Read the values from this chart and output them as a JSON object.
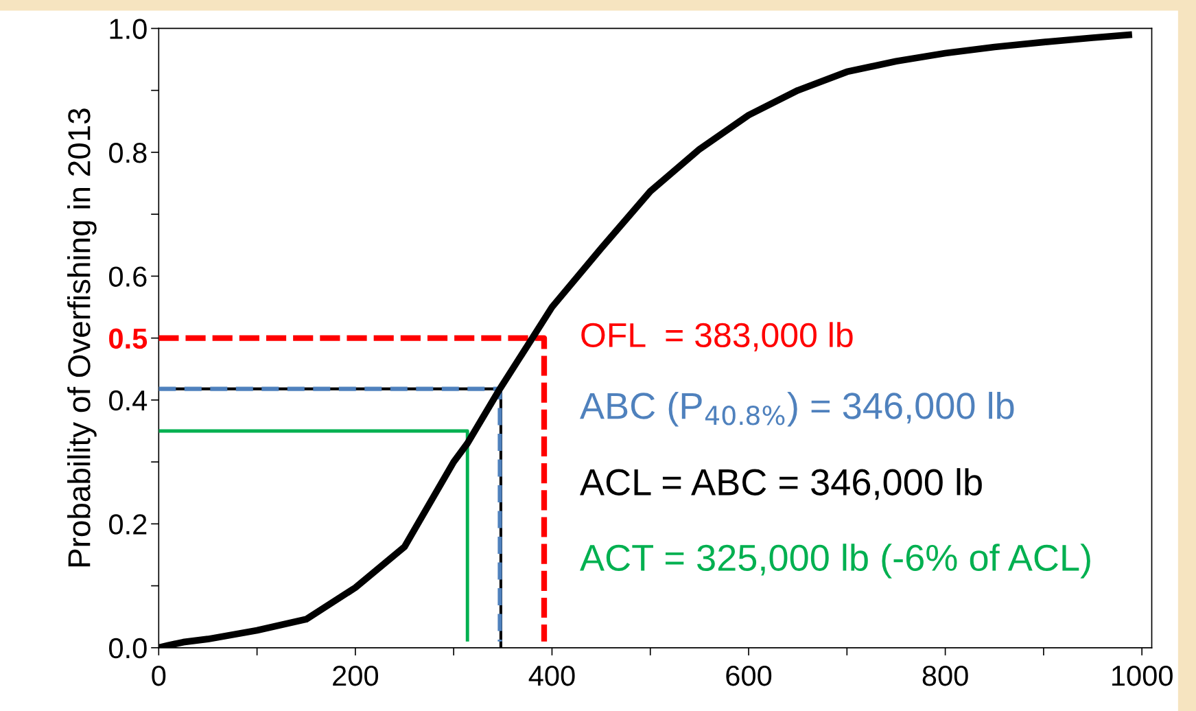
{
  "chart_data": {
    "type": "line",
    "ylabel": "Probability of Overfishing in 2013",
    "xlim": [
      0,
      1010
    ],
    "xticks": [
      0,
      {
        "value": 100,
        "label": null
      },
      200,
      {
        "value": 300,
        "label": null
      },
      400,
      {
        "value": 500,
        "label": null
      },
      600,
      {
        "value": 700,
        "label": null
      },
      800,
      {
        "value": 900,
        "label": null
      },
      1000
    ],
    "ylim": [
      0,
      1.0
    ],
    "yticks": [
      {
        "value": 0,
        "label": "0.0"
      },
      {
        "value": 0.1,
        "label": null
      },
      0.2,
      {
        "value": 0.3,
        "label": null
      },
      0.4,
      {
        "value": 0.5,
        "label": "0.5"
      },
      0.6,
      {
        "value": 0.7,
        "label": null
      },
      0.8,
      {
        "value": 0.9,
        "label": null
      },
      {
        "value": 1.0,
        "label": "1.0"
      }
    ],
    "grid": false,
    "legend": false,
    "marker": "none",
    "series": [
      {
        "color": "#000000",
        "line_style": "solid",
        "x": [
          0,
          10,
          25,
          50,
          100,
          150,
          200,
          250,
          300,
          314,
          347,
          380,
          400,
          450,
          500,
          550,
          600,
          650,
          700,
          750,
          800,
          850,
          900,
          950,
          990
        ],
        "values": [
          0,
          0.004,
          0.009,
          0.014,
          0.028,
          0.046,
          0.097,
          0.163,
          0.3,
          0.33,
          0.418,
          0.5,
          0.55,
          0.645,
          0.737,
          0.805,
          0.86,
          0.9,
          0.93,
          0.947,
          0.96,
          0.97,
          0.978,
          0.985,
          0.99
        ]
      },
      {
        "color": "#ff0000",
        "line_style": "dashed",
        "x": [
          0,
          392,
          392
        ],
        "values": [
          0.5,
          0.5,
          0.01
        ]
      },
      {
        "color": "#4f81bd",
        "line_style": "dashed",
        "x": [
          0,
          347,
          347
        ],
        "values": [
          0.418,
          0.418,
          0.01
        ]
      },
      {
        "color": "#000000",
        "line_style": "solid",
        "x": [
          0,
          348,
          348
        ],
        "values": [
          0.418,
          0.418,
          0
        ]
      },
      {
        "color": "#00b050",
        "line_style": "solid",
        "x": [
          0,
          314,
          314
        ],
        "values": [
          0.35,
          0.35,
          0.01
        ]
      }
    ],
    "annotations": [
      "OFL  = 383,000 lb",
      "ABC (P$_{40.8%}$) = 346,000 lb",
      "ACL = ABC = 346,000 lb",
      "ACT = 325,000 lb (-6% of ACL)"
    ]
  }
}
